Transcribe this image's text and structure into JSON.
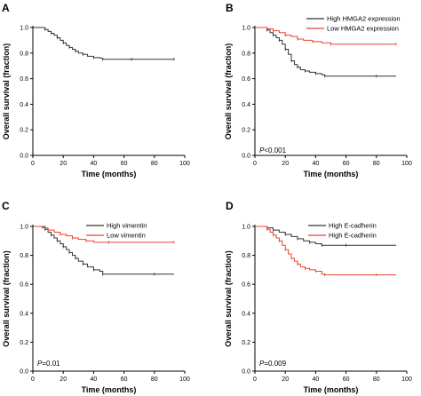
{
  "chart_data": [
    {
      "panel": "A",
      "type": "line",
      "xlabel": "Time (months)",
      "ylabel": "Overall survival (fraction)",
      "xlim": [
        0,
        100
      ],
      "ylim": [
        0,
        1.0
      ],
      "xticks": [
        "0",
        "20",
        "40",
        "60",
        "80",
        "100"
      ],
      "yticks": [
        "0.0",
        "0.2",
        "0.4",
        "0.6",
        "0.8",
        "1.0"
      ],
      "legend_position": "none",
      "p_value": {
        "prefix": "",
        "value": ""
      },
      "series": [
        {
          "name": "",
          "color": "#333333",
          "x": [
            0,
            5,
            8,
            10,
            12,
            14,
            16,
            18,
            20,
            22,
            24,
            26,
            28,
            30,
            33,
            36,
            40,
            44,
            46,
            55,
            65,
            80,
            93
          ],
          "y": [
            1.0,
            1.0,
            0.985,
            0.97,
            0.955,
            0.94,
            0.92,
            0.9,
            0.88,
            0.86,
            0.845,
            0.83,
            0.815,
            0.8,
            0.79,
            0.775,
            0.765,
            0.76,
            0.752,
            0.752,
            0.752,
            0.752,
            0.752
          ]
        }
      ]
    },
    {
      "panel": "B",
      "type": "line",
      "xlabel": "Time (months)",
      "ylabel": "Overall survival (fraction)",
      "xlim": [
        0,
        100
      ],
      "ylim": [
        0,
        1.0
      ],
      "xticks": [
        "0",
        "20",
        "40",
        "60",
        "80",
        "100"
      ],
      "yticks": [
        "0.0",
        "0.2",
        "0.4",
        "0.6",
        "0.8",
        "1.0"
      ],
      "legend_position": "top-right",
      "p_value": {
        "prefix": "P",
        "value": "<0.001"
      },
      "series": [
        {
          "name": "High HMGA2 expression",
          "color": "#333333",
          "x": [
            0,
            6,
            8,
            10,
            12,
            14,
            16,
            18,
            20,
            22,
            24,
            26,
            28,
            30,
            33,
            36,
            40,
            44,
            46,
            60,
            80,
            93
          ],
          "y": [
            1.0,
            1.0,
            0.98,
            0.96,
            0.94,
            0.92,
            0.9,
            0.87,
            0.83,
            0.79,
            0.74,
            0.71,
            0.69,
            0.67,
            0.66,
            0.65,
            0.64,
            0.63,
            0.62,
            0.62,
            0.62,
            0.62
          ]
        },
        {
          "name": "Low HMGA2 expression",
          "color": "#e8432e",
          "x": [
            0,
            8,
            12,
            16,
            20,
            24,
            28,
            32,
            38,
            44,
            50,
            60,
            93
          ],
          "y": [
            1.0,
            0.99,
            0.975,
            0.96,
            0.94,
            0.93,
            0.91,
            0.9,
            0.89,
            0.88,
            0.87,
            0.87,
            0.87
          ]
        }
      ]
    },
    {
      "panel": "C",
      "type": "line",
      "xlabel": "Time (months)",
      "ylabel": "Overall survival (fraction)",
      "xlim": [
        0,
        100
      ],
      "ylim": [
        0,
        1.0
      ],
      "xticks": [
        "0",
        "20",
        "40",
        "60",
        "80",
        "100"
      ],
      "yticks": [
        "0.0",
        "0.2",
        "0.4",
        "0.6",
        "0.8",
        "1.0"
      ],
      "legend_position": "top-right",
      "p_value": {
        "prefix": "P",
        "value": "=0.01"
      },
      "series": [
        {
          "name": "High vimentin",
          "color": "#333333",
          "x": [
            0,
            5,
            8,
            10,
            12,
            14,
            16,
            18,
            20,
            22,
            24,
            26,
            28,
            30,
            33,
            36,
            40,
            44,
            46,
            60,
            80,
            93
          ],
          "y": [
            1.0,
            1.0,
            0.98,
            0.96,
            0.94,
            0.92,
            0.9,
            0.88,
            0.86,
            0.84,
            0.82,
            0.8,
            0.78,
            0.76,
            0.74,
            0.72,
            0.7,
            0.69,
            0.67,
            0.67,
            0.67,
            0.67
          ]
        },
        {
          "name": "Low vimentin",
          "color": "#e8432e",
          "x": [
            0,
            6,
            10,
            14,
            18,
            22,
            26,
            30,
            35,
            40,
            50,
            60,
            93
          ],
          "y": [
            1.0,
            0.99,
            0.975,
            0.96,
            0.945,
            0.935,
            0.92,
            0.91,
            0.9,
            0.89,
            0.89,
            0.89,
            0.89
          ]
        }
      ]
    },
    {
      "panel": "D",
      "type": "line",
      "xlabel": "Time (months)",
      "ylabel": "Overall survival (fraction)",
      "xlim": [
        0,
        100
      ],
      "ylim": [
        0,
        1.0
      ],
      "xticks": [
        "0",
        "20",
        "40",
        "60",
        "80",
        "100"
      ],
      "yticks": [
        "0.0",
        "0.2",
        "0.4",
        "0.6",
        "0.8",
        "1.0"
      ],
      "legend_position": "top-right",
      "p_value": {
        "prefix": "P",
        "value": "=0.009"
      },
      "series": [
        {
          "name": "High E-cadherin",
          "color": "#333333",
          "x": [
            0,
            8,
            12,
            16,
            20,
            24,
            28,
            32,
            36,
            40,
            44,
            50,
            60,
            93
          ],
          "y": [
            1.0,
            0.99,
            0.975,
            0.96,
            0.945,
            0.93,
            0.915,
            0.9,
            0.89,
            0.88,
            0.87,
            0.87,
            0.87,
            0.87
          ]
        },
        {
          "name": "High E-cadherin",
          "color": "#e8432e",
          "x": [
            0,
            5,
            8,
            10,
            12,
            14,
            16,
            18,
            20,
            22,
            24,
            26,
            28,
            30,
            33,
            36,
            40,
            44,
            46,
            60,
            80,
            93
          ],
          "y": [
            1.0,
            1.0,
            0.98,
            0.96,
            0.94,
            0.92,
            0.9,
            0.87,
            0.84,
            0.81,
            0.78,
            0.76,
            0.74,
            0.72,
            0.71,
            0.7,
            0.69,
            0.67,
            0.665,
            0.665,
            0.665,
            0.665
          ]
        }
      ]
    }
  ]
}
